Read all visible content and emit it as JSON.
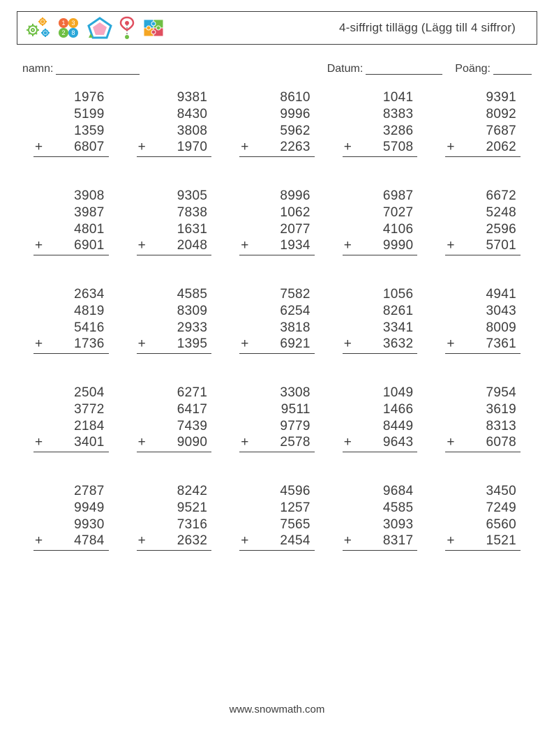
{
  "header": {
    "title": "4-siffrigt tillägg (Lägg till 4 siffror)"
  },
  "meta": {
    "name_label": "namn:",
    "date_label": "Datum:",
    "score_label": "Poäng:"
  },
  "operator": "+",
  "problems": [
    [
      [
        1976,
        5199,
        1359,
        6807
      ],
      [
        9381,
        8430,
        3808,
        1970
      ],
      [
        8610,
        9996,
        5962,
        2263
      ],
      [
        1041,
        8383,
        3286,
        5708
      ],
      [
        9391,
        8092,
        7687,
        2062
      ]
    ],
    [
      [
        3908,
        3987,
        4801,
        6901
      ],
      [
        9305,
        7838,
        1631,
        2048
      ],
      [
        8996,
        1062,
        2077,
        1934
      ],
      [
        6987,
        7027,
        4106,
        9990
      ],
      [
        6672,
        5248,
        2596,
        5701
      ]
    ],
    [
      [
        2634,
        4819,
        5416,
        1736
      ],
      [
        4585,
        8309,
        2933,
        1395
      ],
      [
        7582,
        6254,
        3818,
        6921
      ],
      [
        1056,
        8261,
        3341,
        3632
      ],
      [
        4941,
        3043,
        8009,
        7361
      ]
    ],
    [
      [
        2504,
        3772,
        2184,
        3401
      ],
      [
        6271,
        6417,
        7439,
        9090
      ],
      [
        3308,
        9511,
        9779,
        2578
      ],
      [
        1049,
        1466,
        8449,
        9643
      ],
      [
        7954,
        3619,
        8313,
        6078
      ]
    ],
    [
      [
        2787,
        9949,
        9930,
        4784
      ],
      [
        8242,
        9521,
        7316,
        2632
      ],
      [
        4596,
        1257,
        7565,
        2454
      ],
      [
        9684,
        4585,
        3093,
        8317
      ],
      [
        3450,
        7249,
        6560,
        1521
      ]
    ]
  ],
  "icons": {
    "gear_colors": {
      "a": "#6fbf44",
      "b": "#f5a623",
      "c": "#2aa7d9"
    },
    "balls_colors": {
      "a": "#f26b3a",
      "b": "#f5a623",
      "c": "#6fbf44",
      "d": "#2aa7d9"
    },
    "pentagon": {
      "stroke": "#2aa7d9",
      "fill": "#f6a6c1",
      "tri": "#6fbf44"
    },
    "pin": {
      "pin": "#e04f5f",
      "dot": "#6fbf44"
    },
    "puzzle": {
      "a": "#2aa7d9",
      "b": "#6fbf44",
      "c": "#f5a623",
      "d": "#e04f5f"
    }
  },
  "footer": "www.snowmath.com"
}
